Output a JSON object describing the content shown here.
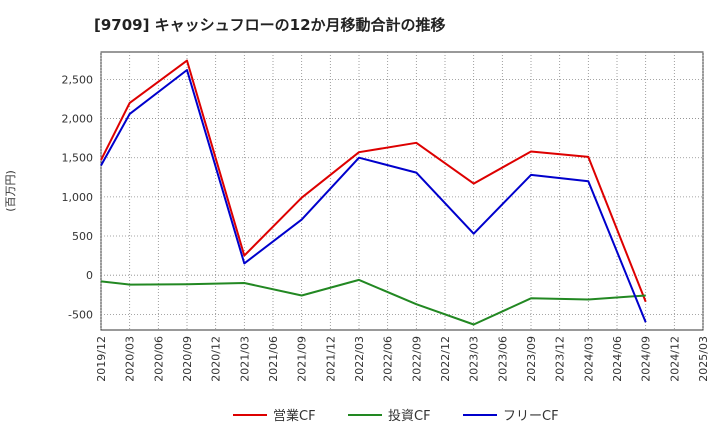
{
  "chart_data": {
    "type": "line",
    "title": "[9709]  キャッシュフローの12か月移動合計の推移",
    "ylabel": "(百万円)",
    "xlabel": "",
    "ylim": [
      -700,
      2850
    ],
    "yticks": [
      2500,
      2000,
      1500,
      1000,
      500,
      0,
      -500
    ],
    "ytick_labels": [
      "2,500",
      "2,000",
      "1,500",
      "1,000",
      "500",
      "0",
      "-500"
    ],
    "xticks": [
      "2019/12",
      "2020/03",
      "2020/06",
      "2020/09",
      "2020/12",
      "2021/03",
      "2021/06",
      "2021/09",
      "2021/12",
      "2022/03",
      "2022/06",
      "2022/09",
      "2022/12",
      "2023/03",
      "2023/06",
      "2023/09",
      "2023/12",
      "2024/03",
      "2024/06",
      "2024/09",
      "2024/12",
      "2025/03"
    ],
    "grid": true,
    "legend_position": "bottom",
    "series": [
      {
        "name": "営業CF",
        "color": "#dd0000",
        "points": [
          {
            "x": "2019/12",
            "y": 1470
          },
          {
            "x": "2020/03",
            "y": 2200
          },
          {
            "x": "2020/09",
            "y": 2740
          },
          {
            "x": "2021/03",
            "y": 250
          },
          {
            "x": "2021/09",
            "y": 990
          },
          {
            "x": "2022/03",
            "y": 1570
          },
          {
            "x": "2022/09",
            "y": 1690
          },
          {
            "x": "2023/03",
            "y": 1170
          },
          {
            "x": "2023/09",
            "y": 1580
          },
          {
            "x": "2024/03",
            "y": 1510
          },
          {
            "x": "2024/09",
            "y": -340
          }
        ]
      },
      {
        "name": "投資CF",
        "color": "#228822",
        "points": [
          {
            "x": "2019/12",
            "y": -80
          },
          {
            "x": "2020/03",
            "y": -120
          },
          {
            "x": "2020/09",
            "y": -115
          },
          {
            "x": "2021/03",
            "y": -100
          },
          {
            "x": "2021/09",
            "y": -260
          },
          {
            "x": "2022/03",
            "y": -60
          },
          {
            "x": "2022/09",
            "y": -370
          },
          {
            "x": "2023/03",
            "y": -630
          },
          {
            "x": "2023/09",
            "y": -295
          },
          {
            "x": "2024/03",
            "y": -310
          },
          {
            "x": "2024/09",
            "y": -260
          }
        ]
      },
      {
        "name": "フリーCF",
        "color": "#0000cc",
        "points": [
          {
            "x": "2019/12",
            "y": 1400
          },
          {
            "x": "2020/03",
            "y": 2060
          },
          {
            "x": "2020/09",
            "y": 2620
          },
          {
            "x": "2021/03",
            "y": 150
          },
          {
            "x": "2021/09",
            "y": 710
          },
          {
            "x": "2022/03",
            "y": 1500
          },
          {
            "x": "2022/09",
            "y": 1310
          },
          {
            "x": "2023/03",
            "y": 530
          },
          {
            "x": "2023/09",
            "y": 1280
          },
          {
            "x": "2024/03",
            "y": 1200
          },
          {
            "x": "2024/09",
            "y": -600
          }
        ]
      }
    ]
  }
}
